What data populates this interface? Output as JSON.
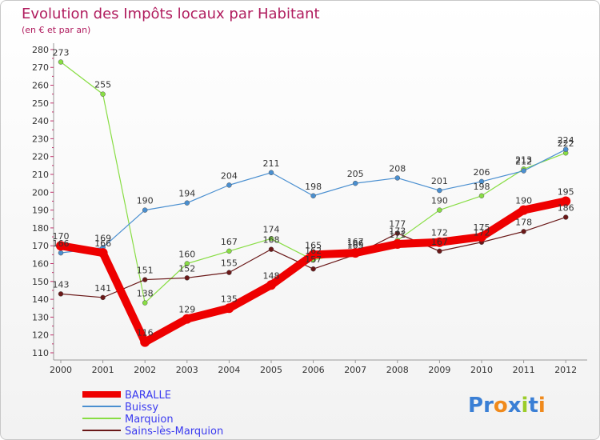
{
  "chart_data": {
    "type": "line",
    "title": "Evolution des Impôts locaux par Habitant",
    "subtitle": "(en € et par an)",
    "xlabel": "",
    "ylabel": "",
    "x": [
      "2000",
      "2001",
      "2002",
      "2003",
      "2004",
      "2005",
      "2006",
      "2007",
      "2008",
      "2009",
      "2010",
      "2011",
      "2012"
    ],
    "yticks": [
      110,
      120,
      130,
      140,
      150,
      160,
      170,
      180,
      190,
      200,
      210,
      220,
      230,
      240,
      250,
      260,
      270,
      280
    ],
    "ylim": [
      110,
      280
    ],
    "grid": false,
    "legend_position": "bottom-left",
    "series": [
      {
        "name": "BARALLE",
        "color": "#ee0000",
        "values": [
          170,
          166,
          116,
          129,
          135,
          148,
          165,
          166,
          171,
          172,
          175,
          190,
          195
        ]
      },
      {
        "name": "Buissy",
        "color": "#4a8fd0",
        "values": [
          166,
          169,
          190,
          194,
          204,
          211,
          198,
          205,
          208,
          201,
          206,
          212,
          224
        ]
      },
      {
        "name": "Marquion",
        "color": "#88dd44",
        "values": [
          273,
          255,
          138,
          160,
          167,
          174,
          162,
          167,
          173,
          190,
          198,
          213,
          222
        ]
      },
      {
        "name": "Sains-lès-Marquion",
        "color": "#6a1818",
        "values": [
          143,
          141,
          151,
          152,
          155,
          168,
          157,
          165,
          177,
          167,
          172,
          178,
          186
        ]
      }
    ]
  },
  "logo": {
    "text": "Proxiti"
  }
}
